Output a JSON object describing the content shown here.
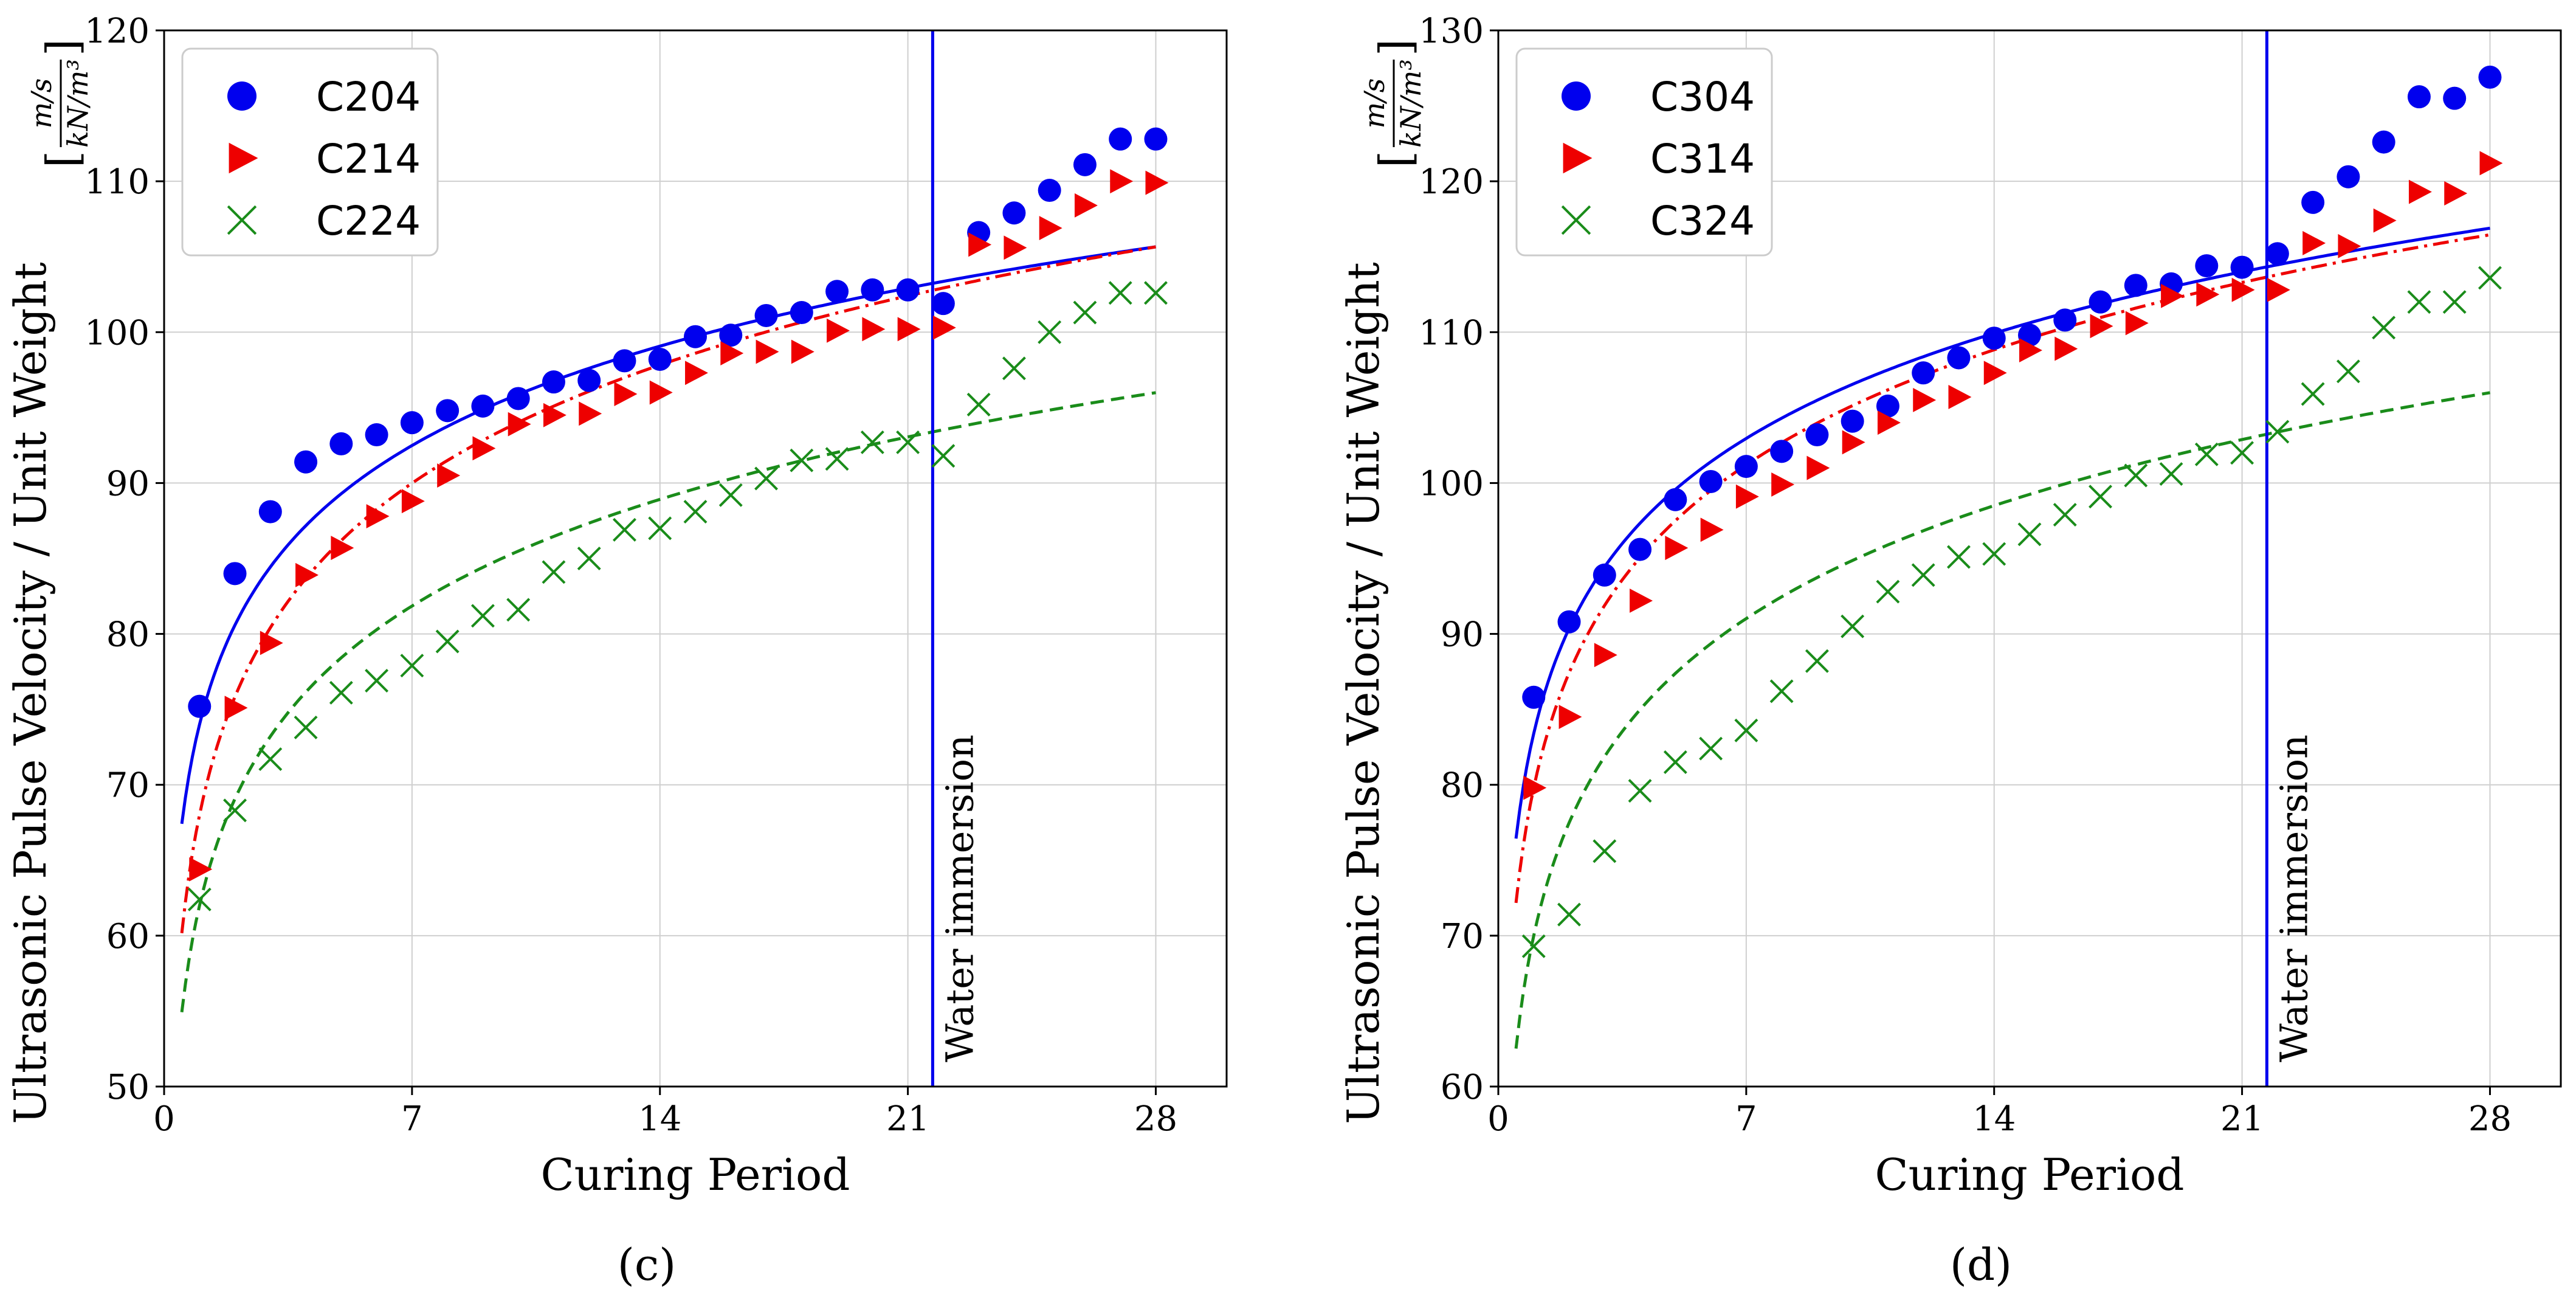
{
  "chart_data": [
    {
      "type": "scatter",
      "panel_label": "(c)",
      "xlabel": "Curing Period",
      "ylabel": "Ultrasonic Pulse Velocity / Unit Weight",
      "ylabel_unit": {
        "num": "m/s",
        "den": "kN/m³",
        "open": "[",
        "close": "]"
      },
      "xlim": [
        0,
        30
      ],
      "ylim": [
        50,
        120
      ],
      "xticks": [
        0,
        7,
        14,
        21,
        28
      ],
      "yticks": [
        50,
        60,
        70,
        80,
        90,
        100,
        110,
        120
      ],
      "grid": true,
      "legend_position": "top-left",
      "annotation": {
        "text": "Water immersion",
        "x": 21.7
      },
      "series": [
        {
          "name": "C204",
          "color": "#0000ee",
          "marker": "circle",
          "x": [
            1,
            2,
            3,
            4,
            5,
            6,
            7,
            8,
            9,
            10,
            11,
            12,
            13,
            14,
            15,
            16,
            17,
            18,
            19,
            20,
            21,
            22,
            23,
            24,
            25,
            26,
            27,
            28
          ],
          "y": [
            75.2,
            84.0,
            88.1,
            91.4,
            92.6,
            93.2,
            94.0,
            94.8,
            95.1,
            95.6,
            96.7,
            96.8,
            98.1,
            98.2,
            99.7,
            99.8,
            101.1,
            101.3,
            102.7,
            102.8,
            102.8,
            101.9,
            106.6,
            107.9,
            109.4,
            111.1,
            112.8,
            112.8
          ],
          "fit": {
            "style": "solid",
            "a": 74.0,
            "b": 9.5
          }
        },
        {
          "name": "C214",
          "color": "#ee0000",
          "marker": "triangle-right",
          "x": [
            1,
            2,
            3,
            4,
            5,
            6,
            7,
            8,
            9,
            10,
            11,
            12,
            13,
            14,
            15,
            16,
            17,
            18,
            19,
            20,
            21,
            22,
            23,
            24,
            25,
            26,
            27,
            28
          ],
          "y": [
            64.4,
            75.1,
            79.4,
            83.9,
            85.7,
            87.8,
            88.8,
            90.5,
            92.3,
            93.9,
            94.5,
            94.6,
            95.9,
            96.0,
            97.3,
            98.6,
            98.7,
            98.7,
            100.1,
            100.2,
            100.2,
            100.3,
            105.8,
            105.6,
            106.9,
            108.4,
            110.0,
            109.9
          ],
          "fit": {
            "style": "dashdot",
            "a": 68.0,
            "b": 11.3
          }
        },
        {
          "name": "C224",
          "color": "#1a8c1a",
          "marker": "x",
          "x": [
            1,
            2,
            3,
            4,
            5,
            6,
            7,
            8,
            9,
            10,
            11,
            12,
            13,
            14,
            15,
            16,
            17,
            18,
            19,
            20,
            21,
            22,
            23,
            24,
            25,
            26,
            27,
            28
          ],
          "y": [
            62.4,
            68.3,
            71.7,
            73.8,
            76.1,
            76.9,
            77.9,
            79.5,
            81.2,
            81.6,
            84.1,
            85.0,
            86.9,
            87.0,
            88.1,
            89.2,
            90.3,
            91.5,
            91.6,
            92.7,
            92.7,
            91.8,
            95.2,
            97.6,
            100.0,
            101.3,
            102.6,
            102.6
          ],
          "fit": {
            "style": "dashed",
            "a": 62.0,
            "b": 10.2
          }
        }
      ]
    },
    {
      "type": "scatter",
      "panel_label": "(d)",
      "xlabel": "Curing Period",
      "ylabel": "Ultrasonic Pulse Velocity / Unit Weight",
      "ylabel_unit": {
        "num": "m/s",
        "den": "kN/m³",
        "open": "[",
        "close": "]"
      },
      "xlim": [
        0,
        30
      ],
      "ylim": [
        60,
        130
      ],
      "xticks": [
        0,
        7,
        14,
        21,
        28
      ],
      "yticks": [
        60,
        70,
        80,
        90,
        100,
        110,
        120,
        130
      ],
      "grid": true,
      "legend_position": "top-left",
      "annotation": {
        "text": "Water immersion",
        "x": 21.7
      },
      "series": [
        {
          "name": "C304",
          "color": "#0000ee",
          "marker": "circle",
          "x": [
            1,
            2,
            3,
            4,
            5,
            6,
            7,
            8,
            9,
            10,
            11,
            12,
            13,
            14,
            15,
            16,
            17,
            18,
            19,
            20,
            21,
            22,
            23,
            24,
            25,
            26,
            27,
            28
          ],
          "y": [
            85.8,
            90.8,
            93.9,
            95.6,
            98.9,
            100.1,
            101.1,
            102.1,
            103.2,
            104.1,
            105.1,
            107.3,
            108.3,
            109.6,
            109.8,
            110.8,
            112.0,
            113.1,
            113.2,
            114.4,
            114.3,
            115.2,
            118.6,
            120.3,
            122.6,
            125.6,
            125.5,
            126.9
          ],
          "fit": {
            "style": "solid",
            "a": 83.4,
            "b": 10.05
          }
        },
        {
          "name": "C314",
          "color": "#ee0000",
          "marker": "triangle-right",
          "x": [
            1,
            2,
            3,
            4,
            5,
            6,
            7,
            8,
            9,
            10,
            11,
            12,
            13,
            14,
            15,
            16,
            17,
            18,
            19,
            20,
            21,
            22,
            23,
            24,
            25,
            26,
            27,
            28
          ],
          "y": [
            79.8,
            84.5,
            88.6,
            92.2,
            95.7,
            96.9,
            99.1,
            99.9,
            101.0,
            102.7,
            104.0,
            105.5,
            105.7,
            107.3,
            108.8,
            108.9,
            110.4,
            110.6,
            112.4,
            112.5,
            112.8,
            112.8,
            115.9,
            115.7,
            117.4,
            119.3,
            119.2,
            121.2
          ],
          "fit": {
            "style": "dashdot",
            "a": 79.8,
            "b": 11.0
          }
        },
        {
          "name": "C324",
          "color": "#1a8c1a",
          "marker": "x",
          "x": [
            1,
            2,
            3,
            4,
            5,
            6,
            7,
            8,
            9,
            10,
            11,
            12,
            13,
            14,
            15,
            16,
            17,
            18,
            19,
            20,
            21,
            22,
            23,
            24,
            25,
            26,
            27,
            28
          ],
          "y": [
            69.3,
            71.4,
            75.6,
            79.6,
            81.5,
            82.4,
            83.6,
            86.2,
            88.2,
            90.5,
            92.8,
            93.9,
            95.1,
            95.3,
            96.6,
            97.9,
            99.1,
            100.5,
            100.6,
            101.9,
            102.0,
            103.4,
            105.9,
            107.4,
            110.3,
            112.0,
            112.0,
            113.6
          ],
          "fit": {
            "style": "dashed",
            "a": 70.0,
            "b": 10.8
          }
        }
      ]
    }
  ]
}
